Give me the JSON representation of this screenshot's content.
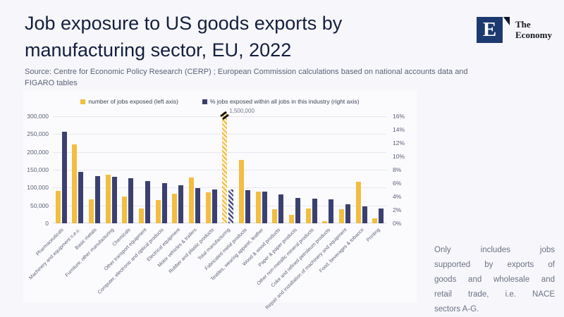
{
  "slide": {
    "title_line1": "Job exposure to US goods exports by",
    "title_line2": "manufacturing sector, EU, 2022",
    "source_line1": "Source: Centre for Economic Policy Research (CERP) ; European Commission calculations based on national accounts data and",
    "source_line2": "FIGARO tables"
  },
  "logo": {
    "monogram": "E",
    "name_line1": "The",
    "name_line2": "Economy"
  },
  "note": {
    "lines": [
      "Only includes jobs",
      "supported by exports of",
      "goods and wholesale and",
      "retail trade, i.e. NACE",
      "sectors A-G."
    ]
  },
  "colors": {
    "jobs_bar": "#F3BD40",
    "pct_bar": "#3B4070",
    "title_navy": "#141F3E",
    "logo_navy": "#1D3A70",
    "background": "#F7F7FB"
  },
  "chart_data": {
    "type": "bar",
    "title": "",
    "legend": [
      "number of jobs exposed (left axis)",
      "% jobs exposed within all jobs in this industry  (right axis)"
    ],
    "legend_position": "top-center",
    "grid": true,
    "left_axis": {
      "label": "number of jobs exposed",
      "min": 0,
      "max": 300000,
      "step": 50000,
      "tick_labels": [
        "0",
        "50,000",
        "100,000",
        "150,000",
        "200,000",
        "250,000",
        "300,000"
      ]
    },
    "right_axis": {
      "label": "% jobs exposed within all jobs in this industry",
      "min": 0,
      "max": 16,
      "step": 2,
      "tick_labels": [
        "0%",
        "2%",
        "4%",
        "6%",
        "8%",
        "10%",
        "12%",
        "14%",
        "16%"
      ]
    },
    "categories": [
      "Pharmaceuticals",
      "Machinery and equipment n.e.c.",
      "Basic metals",
      "Furniture; other manufacturing",
      "Chemicals",
      "Other transport equipment",
      "Computer, electronic and optical products",
      "Electrical equipment",
      "Motor vehicles & trailers",
      "Rubber and plastic products",
      "Total manufacturing",
      "Fabricated metal products",
      "Textiles, wearing apparel, leather",
      "Wood & wood products",
      "Paper & paper products",
      "Other non-metallic mineral products",
      "Coke and refined petroleum products",
      "Repair and installation of machinery and equipment",
      "Food, beverages & tobacco",
      "Printing"
    ],
    "series": [
      {
        "name": "number of jobs exposed (left axis)",
        "axis": "left",
        "values": [
          90000,
          222000,
          67000,
          136000,
          76000,
          41000,
          66000,
          83000,
          128000,
          86000,
          1500000,
          178000,
          89000,
          40000,
          24000,
          42000,
          6000,
          39000,
          116000,
          13000
        ]
      },
      {
        "name": "% jobs exposed within all jobs in this industry (right axis)",
        "axis": "right",
        "values": [
          13.7,
          7.7,
          7.1,
          6.9,
          6.7,
          6.3,
          6.0,
          5.7,
          5.3,
          5.1,
          5.1,
          5.0,
          4.7,
          4.3,
          3.8,
          3.7,
          3.6,
          2.8,
          2.5,
          2.2
        ]
      }
    ],
    "broken_bar": {
      "category": "Total manufacturing",
      "series": "number of jobs exposed (left axis)",
      "true_value": 1500000,
      "annotation": "1,500,000",
      "hatched_pair": true
    }
  }
}
